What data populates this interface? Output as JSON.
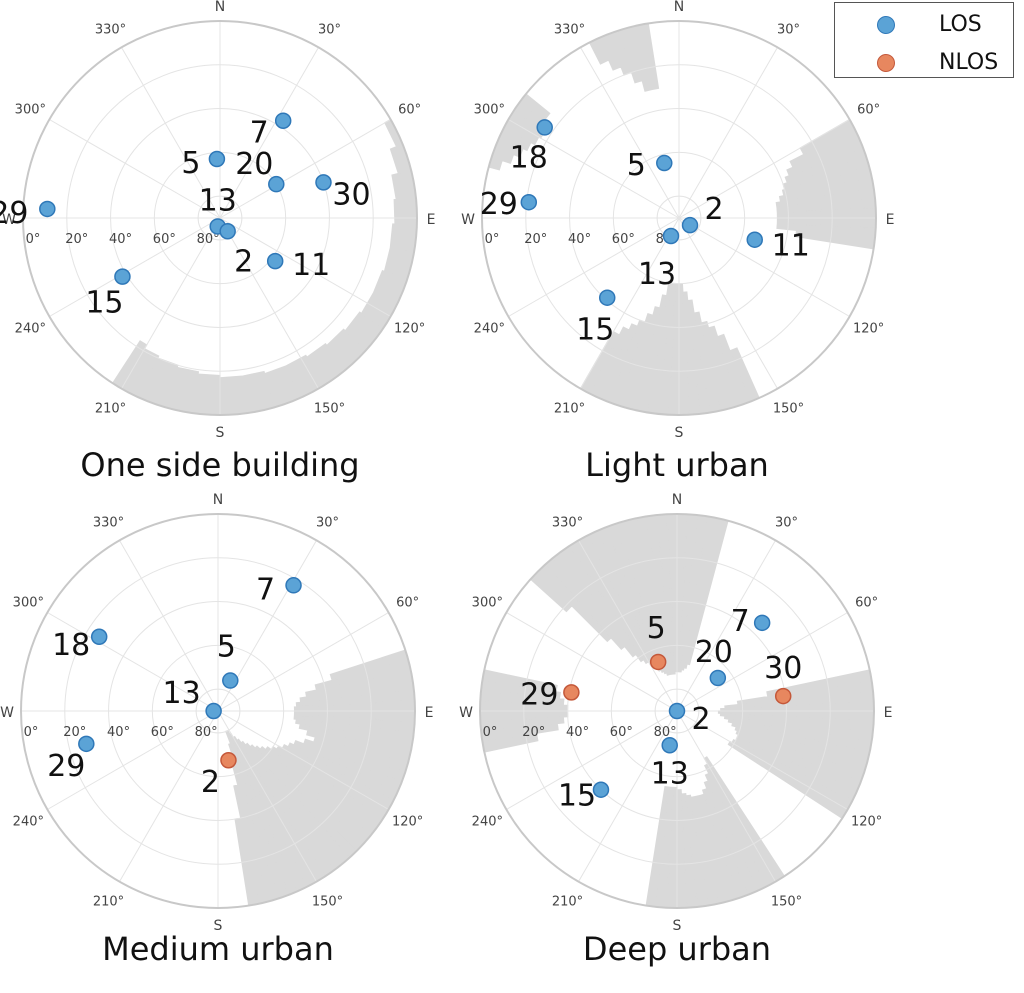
{
  "colors": {
    "los": "#5ba3d6",
    "los_edge": "#2f78b8",
    "nlos": "#e7875f",
    "nlos_edge": "#c4583a",
    "obstruction": "#d9d9d9",
    "grid": "#e4e4e4",
    "rim": "#c8c8c8"
  },
  "legend": {
    "los": "LOS",
    "nlos": "NLOS"
  },
  "chart_data": [
    {
      "type": "scatter",
      "projection": "polar-skyplot",
      "title": "One side building",
      "compass": [
        "N",
        "E",
        "S",
        "W"
      ],
      "azimuth_tick_labels": [
        "30°",
        "60°",
        "120°",
        "150°",
        "210°",
        "240°",
        "300°",
        "330°"
      ],
      "elevation_tick_labels": [
        "0°",
        "20°",
        "40°",
        "60°",
        "80°"
      ],
      "elevation_range": [
        0,
        90
      ],
      "obstruction": {
        "azimuth_deg": [
          52,
          60,
          68,
          76,
          84,
          92,
          100,
          108,
          116,
          124,
          132,
          140,
          148,
          156,
          164,
          172,
          180,
          188,
          196,
          204,
          210
        ],
        "elevation_deg": [
          0,
          3,
          6,
          9,
          10,
          11,
          11,
          12,
          12,
          13,
          14,
          15,
          16,
          16,
          17,
          17,
          18,
          19,
          20,
          21,
          23
        ]
      },
      "points": [
        {
          "id": "7",
          "azimuth": 33,
          "elevation": 37,
          "status": "LOS"
        },
        {
          "id": "5",
          "azimuth": 357,
          "elevation": 63,
          "status": "LOS"
        },
        {
          "id": "20",
          "azimuth": 59,
          "elevation": 60,
          "status": "LOS"
        },
        {
          "id": "30",
          "azimuth": 71,
          "elevation": 40,
          "status": "LOS"
        },
        {
          "id": "29",
          "azimuth": 273,
          "elevation": 11,
          "status": "LOS"
        },
        {
          "id": "13",
          "azimuth": 195,
          "elevation": 86,
          "status": "LOS"
        },
        {
          "id": "2",
          "azimuth": 150,
          "elevation": 83,
          "status": "LOS"
        },
        {
          "id": "15",
          "azimuth": 239,
          "elevation": 38,
          "status": "LOS"
        },
        {
          "id": "11",
          "azimuth": 128,
          "elevation": 58,
          "status": "LOS"
        }
      ]
    },
    {
      "type": "scatter",
      "projection": "polar-skyplot",
      "title": "Light urban",
      "compass": [
        "N",
        "E",
        "S",
        "W"
      ],
      "azimuth_tick_labels": [
        "30°",
        "60°",
        "120°",
        "150°",
        "210°",
        "240°",
        "300°",
        "330°"
      ],
      "elevation_tick_labels": [
        "0°",
        "20°",
        "40°",
        "60°",
        "80°"
      ],
      "elevation_range": [
        0,
        90
      ],
      "obstruction": {
        "azimuth_deg": [
          0,
          3,
          6,
          9,
          12,
          15,
          18,
          21,
          24,
          27,
          30,
          33,
          36,
          39,
          42,
          45,
          48,
          51,
          54,
          57,
          60,
          63,
          66,
          69,
          72,
          75,
          78,
          81,
          84,
          87,
          90,
          93,
          96,
          99,
          102,
          105,
          108,
          111,
          114,
          117,
          120,
          123,
          126,
          129,
          132,
          135,
          138,
          141,
          144,
          147,
          150,
          153,
          156,
          159,
          162,
          165,
          168,
          171,
          174,
          177,
          180,
          183,
          186,
          189,
          192,
          195,
          198,
          201,
          204,
          207,
          210,
          213,
          216,
          219,
          222,
          225,
          228,
          231,
          234,
          237,
          240,
          243,
          246,
          249,
          252,
          255,
          258,
          261,
          264,
          267,
          270,
          273,
          276,
          279,
          282,
          285,
          288,
          291,
          294,
          297,
          300,
          303,
          306,
          309,
          312,
          315,
          318,
          321,
          324,
          327,
          330,
          333,
          336,
          339,
          342,
          345,
          348,
          351,
          354,
          357
        ],
        "elevation_deg": [
          0,
          0,
          0,
          0,
          0,
          0,
          0,
          0,
          0,
          0,
          0,
          0,
          0,
          0,
          0,
          0,
          0,
          0,
          0,
          0,
          26,
          33,
          36,
          38,
          40,
          41,
          43,
          45,
          45,
          45,
          45,
          45,
          36,
          0,
          0,
          0,
          0,
          0,
          0,
          0,
          0,
          0,
          0,
          0,
          0,
          0,
          0,
          0,
          0,
          0,
          0,
          0,
          25,
          33,
          38,
          41,
          46,
          52,
          56,
          60,
          60,
          60,
          60,
          54,
          48,
          44,
          40,
          37,
          34,
          30,
          0,
          0,
          0,
          0,
          0,
          0,
          0,
          0,
          0,
          0,
          0,
          0,
          0,
          0,
          0,
          0,
          0,
          0,
          0,
          0,
          0,
          0,
          0,
          0,
          0,
          5,
          9,
          12,
          14,
          16,
          17,
          18,
          14,
          0,
          0,
          0,
          0,
          0,
          0,
          0,
          0,
          11,
          16,
          20,
          25,
          30,
          30,
          0,
          0,
          0
        ]
      },
      "points": [
        {
          "id": "18",
          "azimuth": 304,
          "elevation": 16,
          "status": "LOS"
        },
        {
          "id": "5",
          "azimuth": 345,
          "elevation": 64,
          "status": "LOS"
        },
        {
          "id": "29",
          "azimuth": 276,
          "elevation": 21,
          "status": "LOS"
        },
        {
          "id": "2",
          "azimuth": 123,
          "elevation": 84,
          "status": "LOS"
        },
        {
          "id": "13",
          "azimuth": 204,
          "elevation": 81,
          "status": "LOS"
        },
        {
          "id": "15",
          "azimuth": 222,
          "elevation": 41,
          "status": "LOS"
        },
        {
          "id": "11",
          "azimuth": 106,
          "elevation": 54,
          "status": "LOS"
        }
      ]
    },
    {
      "type": "scatter",
      "projection": "polar-skyplot",
      "title": "Medium urban",
      "compass": [
        "N",
        "E",
        "S",
        "W"
      ],
      "azimuth_tick_labels": [
        "30°",
        "60°",
        "120°",
        "150°",
        "210°",
        "240°",
        "300°",
        "330°"
      ],
      "elevation_tick_labels": [
        "0°",
        "20°",
        "40°",
        "60°",
        "80°"
      ],
      "elevation_range": [
        0,
        90
      ],
      "obstruction": {
        "azimuth_deg": [
          0,
          3,
          6,
          9,
          12,
          15,
          18,
          21,
          24,
          27,
          30,
          33,
          36,
          39,
          42,
          45,
          48,
          51,
          54,
          57,
          60,
          63,
          66,
          69,
          72,
          75,
          78,
          81,
          84,
          87,
          90,
          93,
          96,
          99,
          102,
          105,
          108,
          111,
          114,
          117,
          120,
          123,
          126,
          129,
          132,
          135,
          138,
          141,
          144,
          147,
          150,
          153,
          156,
          159,
          162,
          165,
          168,
          171,
          174,
          177,
          180,
          183,
          186,
          189,
          192,
          195,
          198,
          201,
          204,
          207,
          210,
          213,
          216,
          219,
          222,
          225,
          228,
          231,
          234,
          237,
          240,
          243,
          246,
          249,
          252,
          255,
          258,
          261,
          264,
          267,
          270,
          273,
          276,
          279,
          282,
          285,
          288,
          291,
          294,
          297,
          300,
          303,
          306,
          309,
          312,
          315,
          318,
          321,
          324,
          327,
          330,
          333,
          336,
          339,
          342,
          345,
          348,
          351,
          354,
          357
        ],
        "elevation_deg": [
          0,
          0,
          0,
          0,
          0,
          0,
          0,
          0,
          0,
          0,
          0,
          0,
          0,
          0,
          0,
          0,
          0,
          0,
          0,
          0,
          0,
          0,
          0,
          0,
          36,
          44,
          49,
          52,
          54,
          55,
          55,
          55,
          54,
          52,
          48,
          44,
          48,
          52,
          54,
          56,
          58,
          60,
          62,
          64,
          66,
          68,
          70,
          72,
          74,
          76,
          78,
          80,
          80,
          74,
          64,
          55,
          40,
          0,
          0,
          0,
          0,
          0,
          0,
          0,
          0,
          0,
          0,
          0,
          0,
          0,
          0,
          0,
          0,
          0,
          0,
          0,
          0,
          0,
          0,
          0,
          0,
          0,
          0,
          0,
          0,
          0,
          0,
          0,
          0,
          0,
          0,
          0,
          0,
          0,
          0,
          0,
          0,
          0,
          0,
          0,
          0,
          0,
          0,
          0,
          0,
          0,
          0,
          0,
          0,
          0,
          0,
          0,
          0,
          0,
          0,
          0,
          0,
          0,
          0,
          0
        ]
      },
      "points": [
        {
          "id": "7",
          "azimuth": 31,
          "elevation": 23,
          "status": "LOS"
        },
        {
          "id": "18",
          "azimuth": 302,
          "elevation": 26,
          "status": "LOS"
        },
        {
          "id": "5",
          "azimuth": 22,
          "elevation": 75,
          "status": "LOS"
        },
        {
          "id": "13",
          "azimuth": 270,
          "elevation": 88,
          "status": "LOS"
        },
        {
          "id": "29",
          "azimuth": 256,
          "elevation": 28,
          "status": "LOS"
        },
        {
          "id": "2",
          "azimuth": 168,
          "elevation": 67,
          "status": "NLOS"
        }
      ]
    },
    {
      "type": "scatter",
      "projection": "polar-skyplot",
      "title": "Deep urban",
      "compass": [
        "N",
        "E",
        "S",
        "W"
      ],
      "azimuth_tick_labels": [
        "30°",
        "60°",
        "120°",
        "150°",
        "210°",
        "240°",
        "300°",
        "330°"
      ],
      "elevation_tick_labels": [
        "0°",
        "20°",
        "40°",
        "60°",
        "80°"
      ],
      "elevation_range": [
        0,
        90
      ],
      "obstruction": {
        "azimuth_deg": [
          0,
          3,
          6,
          9,
          12,
          15,
          18,
          21,
          24,
          27,
          30,
          33,
          36,
          39,
          42,
          45,
          48,
          51,
          54,
          57,
          60,
          63,
          66,
          69,
          72,
          75,
          78,
          81,
          84,
          87,
          90,
          93,
          96,
          99,
          102,
          105,
          108,
          111,
          114,
          117,
          120,
          123,
          126,
          129,
          132,
          135,
          138,
          141,
          144,
          147,
          150,
          153,
          156,
          159,
          162,
          165,
          168,
          171,
          174,
          177,
          180,
          183,
          186,
          189,
          192,
          195,
          198,
          201,
          204,
          207,
          210,
          213,
          216,
          219,
          222,
          225,
          228,
          231,
          234,
          237,
          240,
          243,
          246,
          249,
          252,
          255,
          258,
          261,
          264,
          267,
          270,
          273,
          276,
          279,
          282,
          285,
          288,
          291,
          294,
          297,
          300,
          303,
          306,
          309,
          312,
          315,
          318,
          321,
          324,
          327,
          330,
          333,
          336,
          339,
          342,
          345,
          348,
          351,
          354,
          357
        ],
        "elevation_deg": [
          72,
          72,
          71,
          70,
          68,
          0,
          0,
          0,
          0,
          0,
          0,
          0,
          0,
          0,
          0,
          0,
          0,
          0,
          0,
          0,
          0,
          0,
          0,
          0,
          0,
          0,
          48,
          62,
          68,
          70,
          71,
          70,
          68,
          66,
          64,
          62,
          61,
          60,
          60,
          61,
          62,
          0,
          0,
          0,
          0,
          0,
          0,
          0,
          0,
          65,
          62,
          58,
          55,
          52,
          50,
          50,
          50,
          51,
          52,
          54,
          55,
          55,
          55,
          0,
          0,
          0,
          0,
          0,
          0,
          0,
          0,
          0,
          0,
          0,
          0,
          0,
          0,
          0,
          0,
          0,
          0,
          0,
          0,
          0,
          0,
          0,
          25,
          35,
          38,
          40,
          40,
          38,
          36,
          34,
          0,
          0,
          0,
          0,
          0,
          0,
          0,
          0,
          0,
          0,
          22,
          45,
          52,
          58,
          62,
          64,
          66,
          68,
          70,
          71,
          72,
          73,
          73,
          73,
          73,
          72
        ]
      },
      "points": [
        {
          "id": "7",
          "azimuth": 44,
          "elevation": 34,
          "status": "LOS"
        },
        {
          "id": "5",
          "azimuth": 339,
          "elevation": 66,
          "status": "NLOS"
        },
        {
          "id": "20",
          "azimuth": 51,
          "elevation": 66,
          "status": "LOS"
        },
        {
          "id": "29",
          "azimuth": 280,
          "elevation": 41,
          "status": "NLOS"
        },
        {
          "id": "30",
          "azimuth": 82,
          "elevation": 41,
          "status": "NLOS"
        },
        {
          "id": "2",
          "azimuth": 180,
          "elevation": 90,
          "status": "LOS"
        },
        {
          "id": "13",
          "azimuth": 192,
          "elevation": 74,
          "status": "LOS"
        },
        {
          "id": "15",
          "azimuth": 224,
          "elevation": 40,
          "status": "LOS"
        }
      ]
    }
  ]
}
